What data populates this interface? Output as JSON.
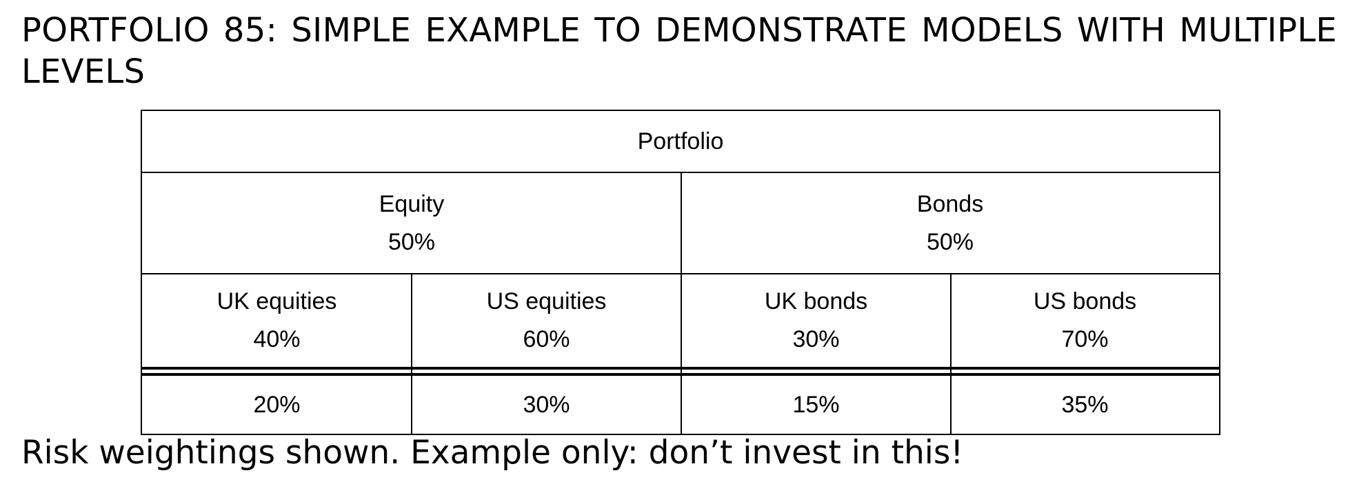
{
  "title": "PORTFOLIO 85: SIMPLE EXAMPLE TO DEMONSTRATE MODELS WITH MULTIPLE LEVELS",
  "diagram": {
    "root": {
      "label": "Portfolio"
    },
    "level1": [
      {
        "label": "Equity",
        "weight": "50%"
      },
      {
        "label": "Bonds",
        "weight": "50%"
      }
    ],
    "level2": [
      {
        "label": "UK equities",
        "weight": "40%"
      },
      {
        "label": "US equities",
        "weight": "60%"
      },
      {
        "label": "UK bonds",
        "weight": "30%"
      },
      {
        "label": "US bonds",
        "weight": "70%"
      }
    ],
    "totals": [
      "20%",
      "30%",
      "15%",
      "35%"
    ]
  },
  "caption": "Risk weightings shown. Example only: don’t invest in this!"
}
